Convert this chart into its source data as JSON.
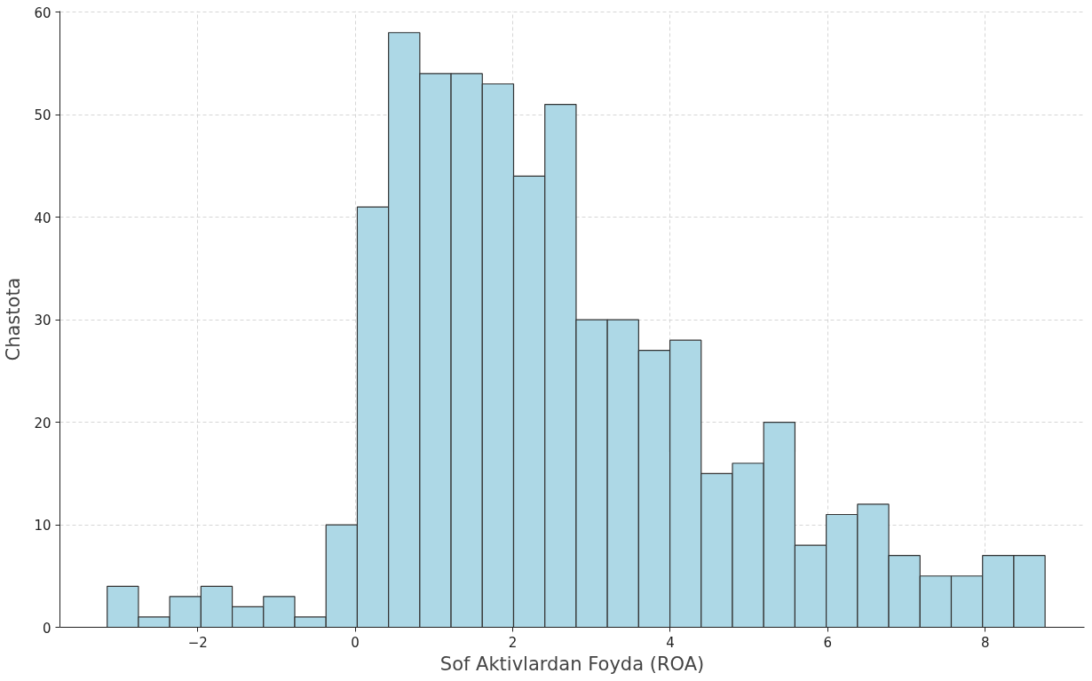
{
  "chart_data": {
    "type": "histogram",
    "xlabel": "Sof Aktivlardan Foyda (ROA)",
    "ylabel": "Chastota",
    "bins": [
      -3.15,
      -2.753,
      -2.356,
      -1.959,
      -1.562,
      -1.165,
      -0.768,
      -0.371,
      0.026,
      0.423,
      0.82,
      1.217,
      1.614,
      2.011,
      2.408,
      2.805,
      3.202,
      3.599,
      3.996,
      4.393,
      4.79,
      5.187,
      5.584,
      5.981,
      6.378,
      6.775,
      7.172,
      7.569,
      7.966,
      8.363,
      8.76
    ],
    "values": [
      4,
      1,
      3,
      4,
      2,
      3,
      1,
      10,
      41,
      58,
      54,
      54,
      53,
      44,
      51,
      30,
      30,
      27,
      28,
      15,
      16,
      20,
      8,
      11,
      12,
      7,
      5,
      5,
      7,
      7
    ],
    "color": "#add8e6",
    "xlim": [
      -3.75,
      9.26
    ],
    "ylim": [
      0,
      60.1
    ],
    "xticks": [
      {
        "value": -2,
        "label": "−2"
      },
      0,
      2,
      4,
      6,
      8
    ],
    "yticks": [
      0,
      10,
      20,
      30,
      40,
      50,
      60
    ],
    "grid": true,
    "line_style": "dashed"
  }
}
